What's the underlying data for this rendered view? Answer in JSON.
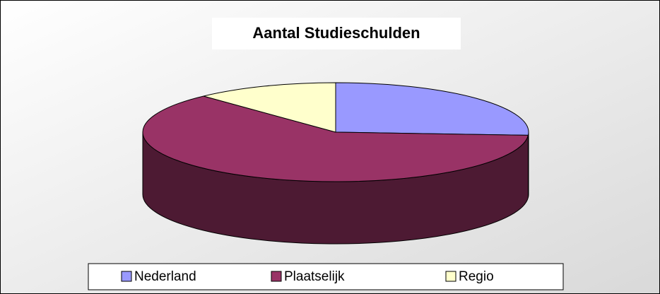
{
  "chart_data": {
    "type": "pie",
    "title": "Aantal Studieschulden",
    "categories": [
      "Nederland",
      "Plaatselijk",
      "Regio"
    ],
    "values": [
      26,
      62,
      12
    ],
    "colors": [
      "#9999ff",
      "#993366",
      "#ffffcc"
    ],
    "legend": "bottom"
  }
}
